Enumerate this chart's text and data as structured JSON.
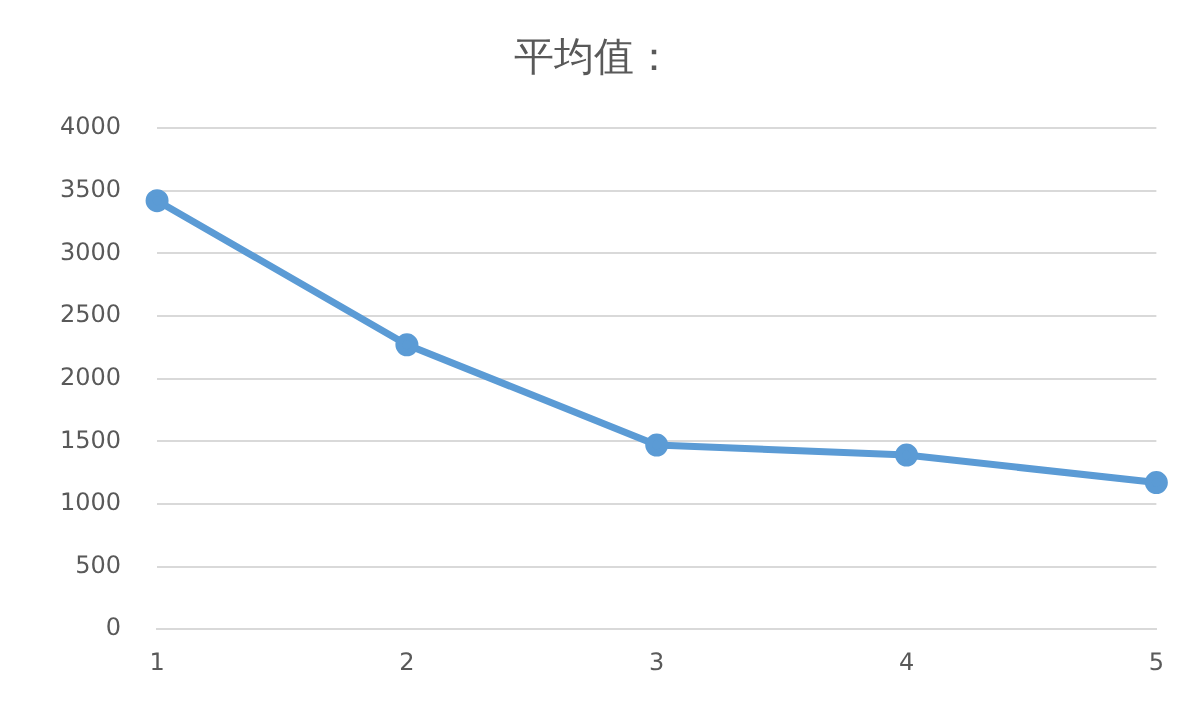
{
  "chart_data": {
    "type": "line",
    "title": "平均值：",
    "categories": [
      "1",
      "2",
      "3",
      "4",
      "5"
    ],
    "series": [
      {
        "color": "#5b9bd5",
        "values": [
          3420,
          2270,
          1470,
          1390,
          1170
        ]
      }
    ],
    "ylim": [
      0,
      4000
    ],
    "yticks": [
      0,
      500,
      1000,
      1500,
      2000,
      2500,
      3000,
      3500,
      4000
    ],
    "grid": "y",
    "legend": false,
    "marker": "circle",
    "line_style": "solid"
  }
}
